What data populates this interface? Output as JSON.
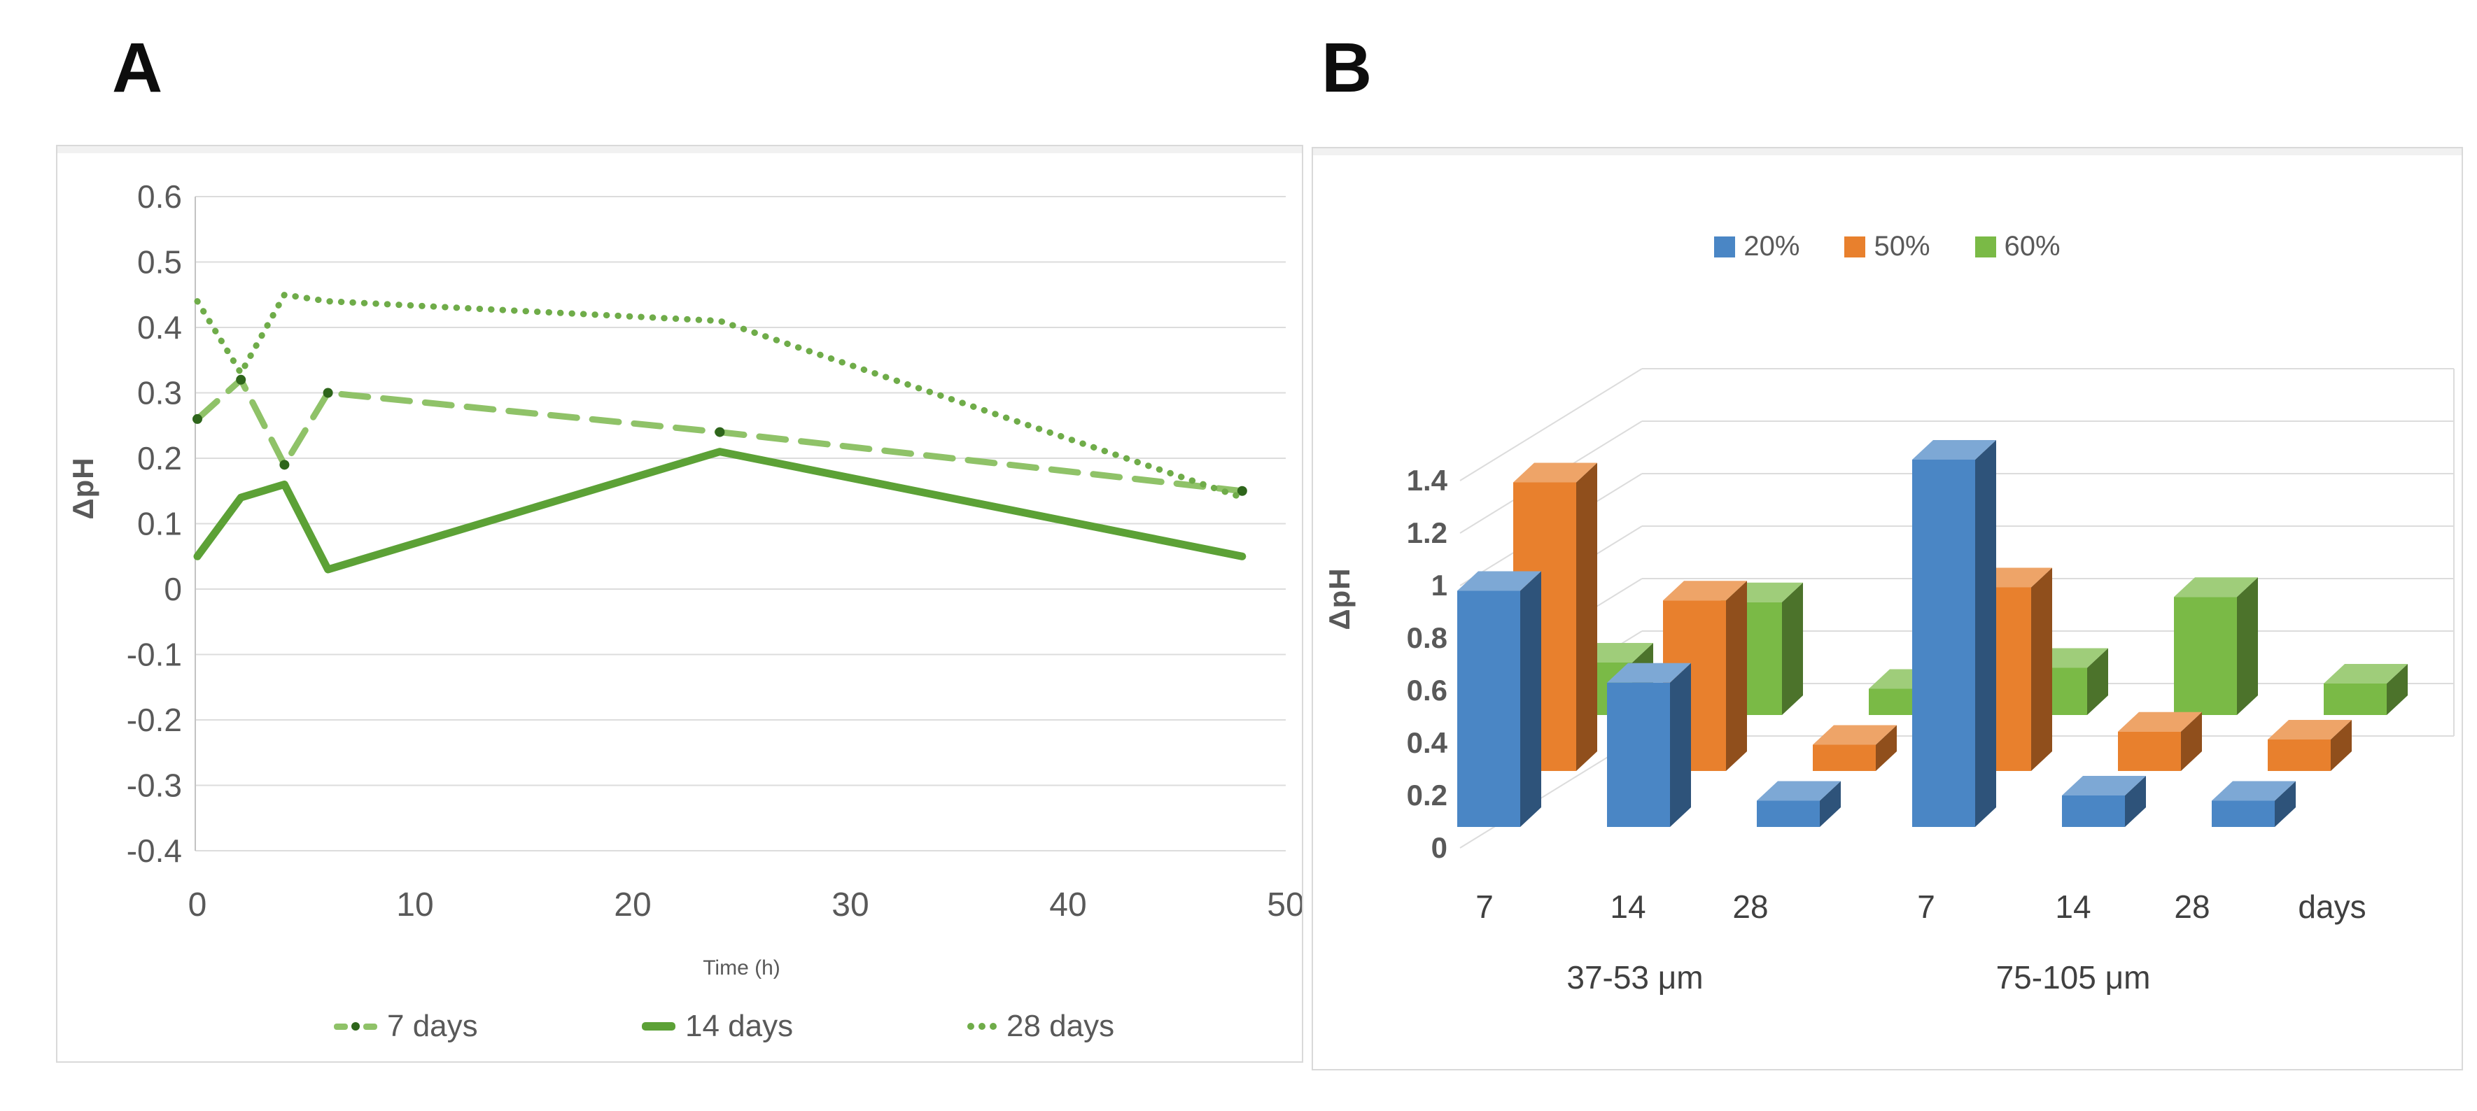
{
  "panel_labels": {
    "a": "A",
    "b": "B"
  },
  "chart_data": [
    {
      "type": "line",
      "panel": "A",
      "xlabel": "Time (h)",
      "ylabel": "ΔpH",
      "xlim": [
        0,
        50
      ],
      "ylim": [
        -0.4,
        0.6
      ],
      "xticks": [
        0,
        10,
        20,
        30,
        40,
        50
      ],
      "yticks": [
        0.6,
        0.5,
        0.4,
        0.3,
        0.2,
        0.1,
        0,
        -0.1,
        -0.2,
        -0.3,
        -0.4
      ],
      "grid": true,
      "legend_position": "bottom",
      "x": [
        0,
        2,
        4,
        6,
        24,
        48
      ],
      "series": [
        {
          "name": "7 days",
          "style": "dashed",
          "color": "#8fc268",
          "marker_color": "#2e651b",
          "values": [
            0.26,
            0.32,
            0.19,
            0.3,
            0.24,
            0.15
          ]
        },
        {
          "name": "14 days",
          "style": "solid",
          "color": "#5ca136",
          "values": [
            0.05,
            0.14,
            0.16,
            0.03,
            0.21,
            0.05
          ]
        },
        {
          "name": "28 days",
          "style": "dotted",
          "color": "#6fac49",
          "values": [
            0.44,
            0.33,
            0.45,
            0.44,
            0.41,
            0.14
          ]
        }
      ]
    },
    {
      "type": "bar",
      "subtype": "3d",
      "panel": "B",
      "ylabel": "ΔpH",
      "ylim": [
        0,
        1.4
      ],
      "yticks": [
        0,
        0.2,
        0.4,
        0.6,
        0.8,
        1,
        1.2,
        1.4
      ],
      "categories": [
        "7",
        "14",
        "28",
        "7",
        "14",
        "28"
      ],
      "group_labels": [
        "37-53 μm",
        "75-105 μm"
      ],
      "axis_suffix": "days",
      "grid": true,
      "legend_position": "top",
      "series": [
        {
          "name": "20%",
          "color": "#4a86c5",
          "values": [
            0.9,
            0.55,
            0.1,
            1.4,
            0.12,
            0.1
          ]
        },
        {
          "name": "50%",
          "color": "#e8802d",
          "values": [
            1.1,
            0.65,
            0.1,
            0.7,
            0.15,
            0.12
          ]
        },
        {
          "name": "60%",
          "color": "#7aba46",
          "values": [
            0.2,
            0.43,
            0.1,
            0.18,
            0.45,
            0.12
          ]
        }
      ]
    }
  ]
}
